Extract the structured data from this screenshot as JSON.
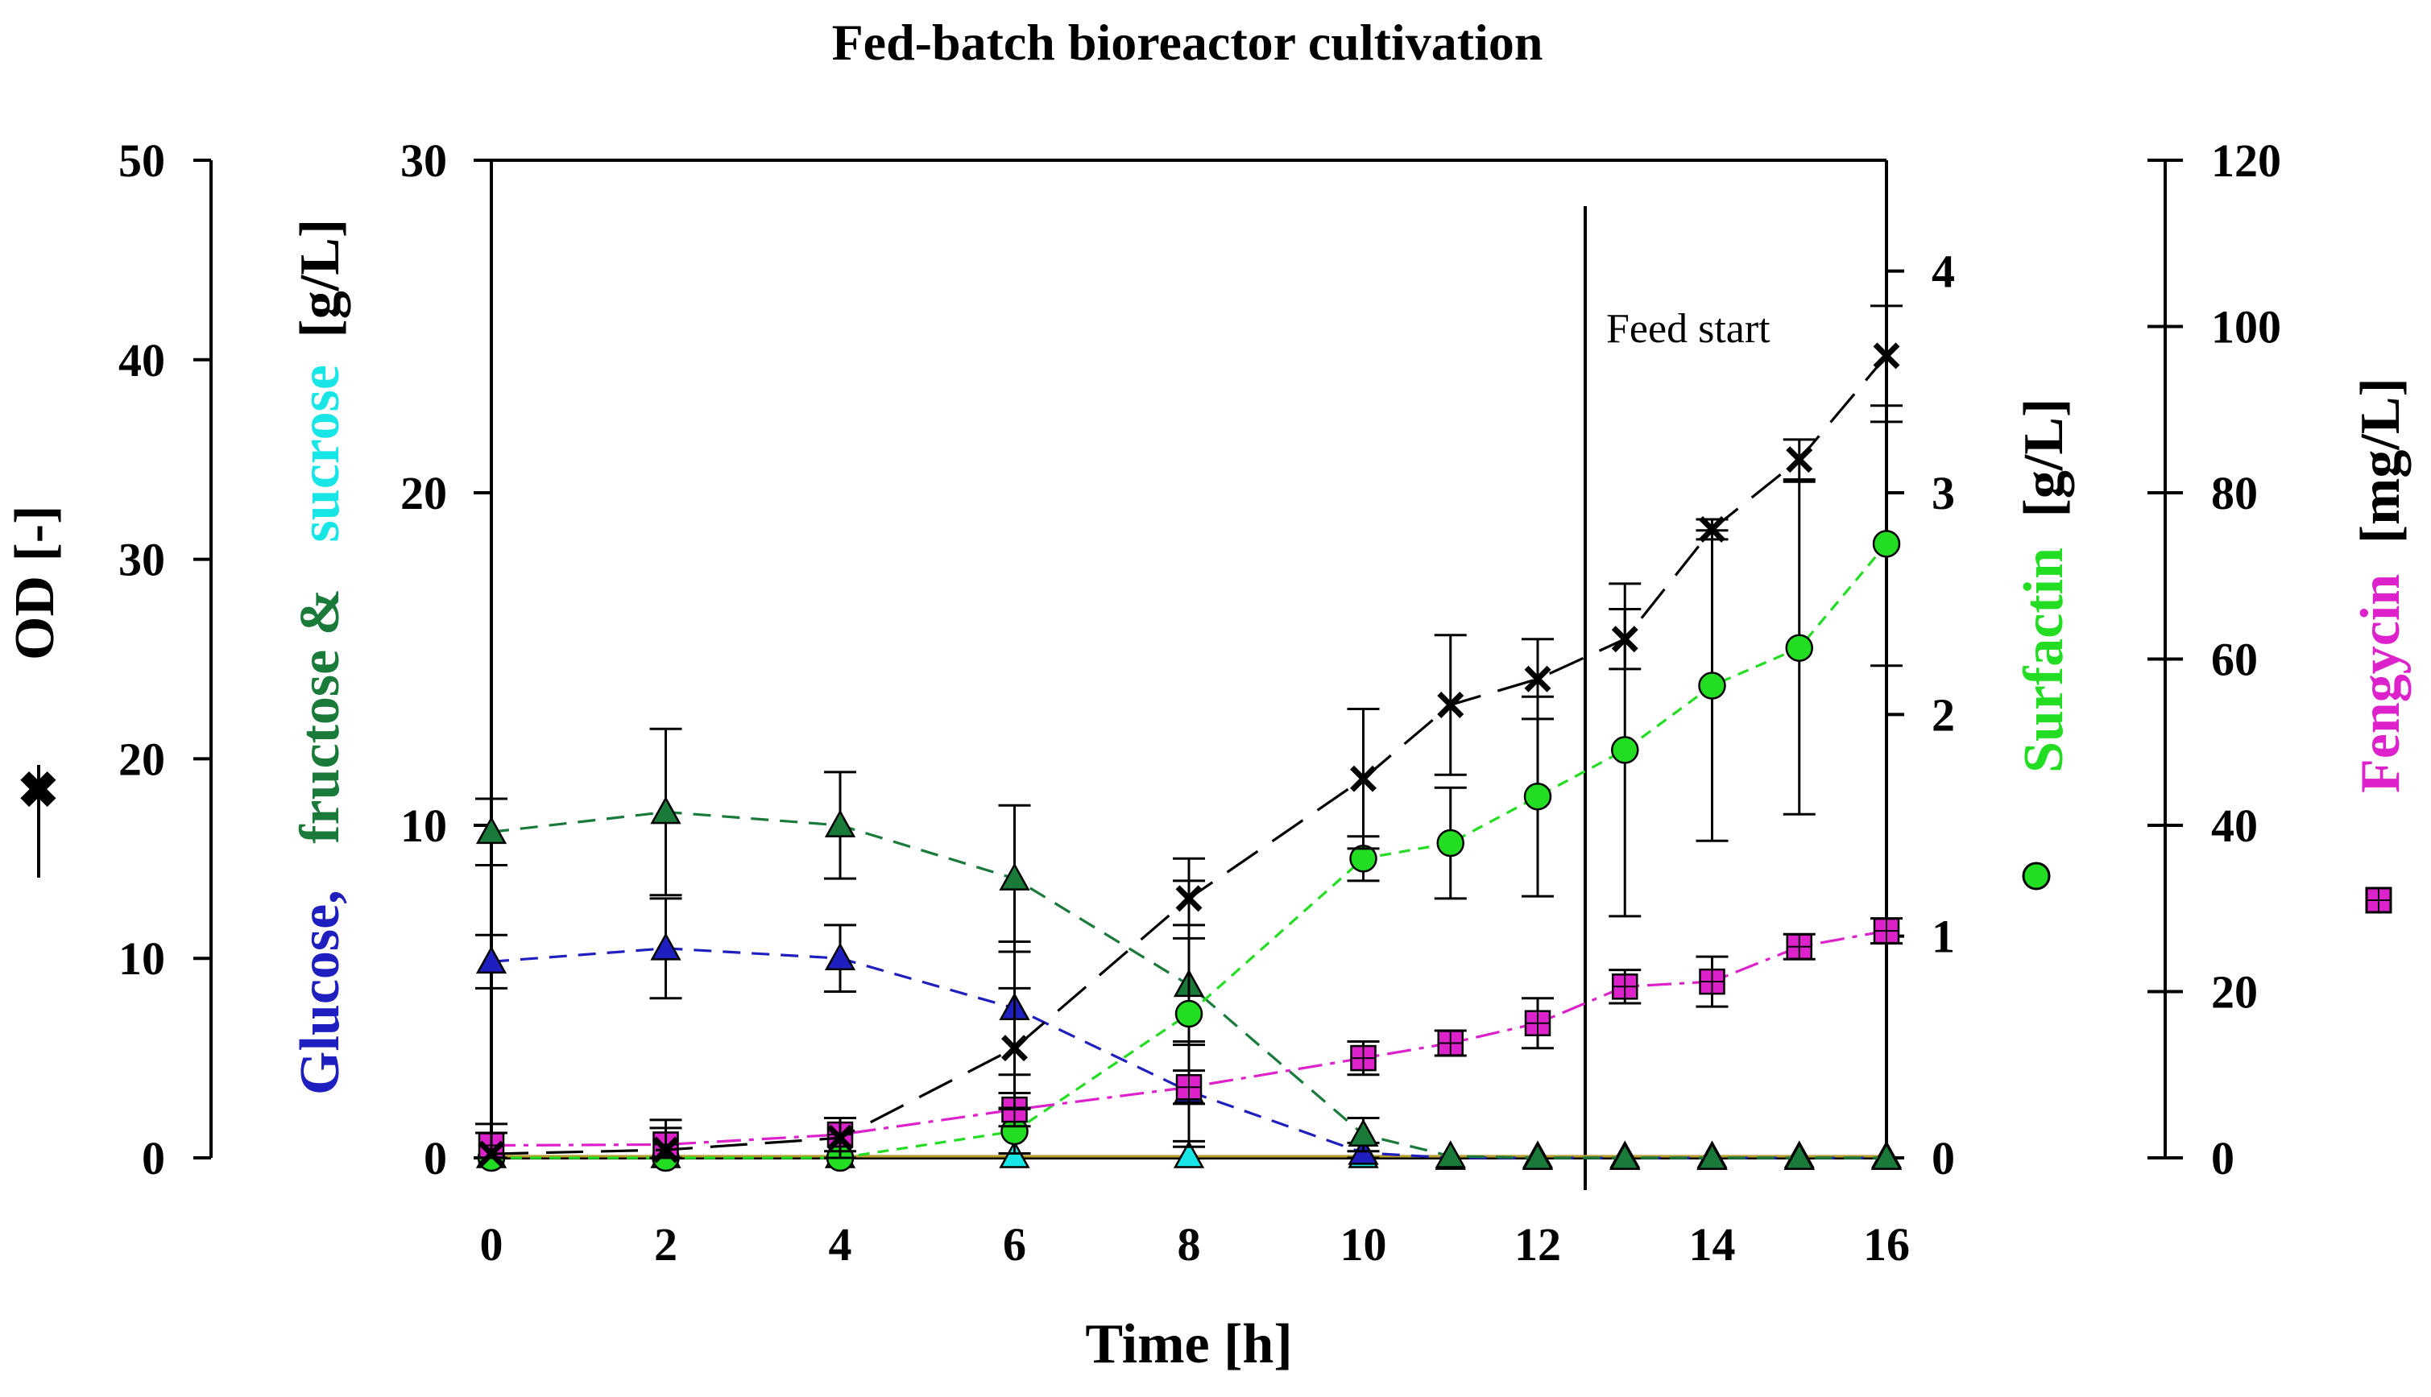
{
  "chart_data": {
    "type": "line",
    "title": "Fed-batch bioreactor cultivation",
    "xlabel": "Time [h]",
    "x_ticks": [
      "0",
      "2",
      "4",
      "6",
      "8",
      "10",
      "12",
      "14",
      "16"
    ],
    "xlim": [
      0,
      16
    ],
    "axes": {
      "od": {
        "label": "OD [-]",
        "ylim": [
          0,
          50
        ],
        "ticks": [
          "0",
          "10",
          "20",
          "30",
          "40",
          "50"
        ]
      },
      "sugar": {
        "label_parts": [
          {
            "text": "Glucose,",
            "color": "#1f1fbf"
          },
          {
            "text": "fructose &",
            "color": "#1a7a3a"
          },
          {
            "text": "sucrose",
            "color": "#18e6e6"
          },
          {
            "text": "[g/L]",
            "color": "#000000"
          }
        ],
        "ylim": [
          0,
          30
        ],
        "ticks": [
          "0",
          "10",
          "20",
          "30"
        ]
      },
      "surfactin": {
        "label": "Surfactin",
        "unit": "[g/L]",
        "color": "#22dd22",
        "ylim": [
          0,
          4.5
        ],
        "ticks": [
          "0",
          "1",
          "2",
          "3",
          "4"
        ]
      },
      "fengycin": {
        "label": "Fengycin",
        "unit": "[mg/L]",
        "color": "#dd22cc",
        "ylim": [
          0,
          120
        ],
        "ticks": [
          "0",
          "20",
          "40",
          "60",
          "80",
          "100",
          "120"
        ]
      }
    },
    "annotations": [
      {
        "text": "Feed start",
        "x": 12.6
      }
    ],
    "series": [
      {
        "name": "OD",
        "axis": "od",
        "marker": "x",
        "color": "#000000",
        "x": [
          0,
          2,
          4,
          6,
          8,
          10,
          11,
          12,
          13,
          14,
          15,
          16
        ],
        "values": [
          0.2,
          0.4,
          1.0,
          5.5,
          13.0,
          19.0,
          22.7,
          24.0,
          26.0,
          31.5,
          35.0,
          40.2
        ],
        "errors": [
          1.5,
          1.5,
          1.0,
          3.0,
          2.0,
          3.5,
          3.5,
          2.0,
          1.5,
          0.5,
          1.0,
          2.5
        ]
      },
      {
        "name": "Glucose",
        "axis": "sugar",
        "marker": "triangle",
        "color": "#1f1fbf",
        "x": [
          0,
          2,
          4,
          6,
          8,
          10,
          11,
          12,
          13,
          14,
          15,
          16
        ],
        "values": [
          5.9,
          6.3,
          6.0,
          4.5,
          2.0,
          0.15,
          0.0,
          0.0,
          0.0,
          0.0,
          0.0,
          0.0
        ],
        "errors": [
          0.8,
          1.5,
          1.0,
          2.0,
          1.5,
          0.3,
          0,
          0,
          0,
          0,
          0,
          0
        ]
      },
      {
        "name": "Fructose",
        "axis": "sugar",
        "marker": "triangle",
        "color": "#1a7a3a",
        "x": [
          0,
          2,
          4,
          6,
          8,
          10,
          11,
          12,
          13,
          14,
          15,
          16
        ],
        "values": [
          9.8,
          10.4,
          10.0,
          8.4,
          5.2,
          0.7,
          0.05,
          0.0,
          0.0,
          0.0,
          0.0,
          0.0
        ],
        "errors": [
          1.0,
          2.5,
          1.6,
          2.2,
          1.8,
          0.5,
          0,
          0,
          0,
          0,
          0,
          0
        ]
      },
      {
        "name": "Sucrose",
        "axis": "sugar",
        "marker": "triangle",
        "color": "#18e6e6",
        "x": [
          0,
          2,
          4,
          6,
          8,
          10,
          11,
          12,
          13,
          14,
          15,
          16
        ],
        "values": [
          0.05,
          0.05,
          0.05,
          0.05,
          0.05,
          0.05,
          0.05,
          0.05,
          0.05,
          0.05,
          0.05,
          0.05
        ],
        "errors": [
          0,
          0,
          0,
          0,
          0,
          0,
          0,
          0,
          0,
          0,
          0,
          0
        ]
      },
      {
        "name": "Surfactin",
        "axis": "surfactin",
        "marker": "circle",
        "color": "#22dd22",
        "x": [
          0,
          2,
          4,
          6,
          8,
          10,
          11,
          12,
          13,
          14,
          15,
          16
        ],
        "values": [
          0.0,
          0.0,
          0.0,
          0.12,
          0.65,
          1.35,
          1.42,
          1.63,
          1.84,
          2.13,
          2.3,
          2.77
        ],
        "errors": [
          0,
          0,
          0,
          0.1,
          0.6,
          0.1,
          0.25,
          0.45,
          0.75,
          0.7,
          0.75,
          0.55
        ]
      },
      {
        "name": "Fengycin",
        "axis": "fengycin",
        "marker": "square",
        "color": "#dd22cc",
        "x": [
          0,
          2,
          4,
          6,
          8,
          10,
          11,
          12,
          13,
          14,
          15,
          16
        ],
        "values": [
          1.5,
          1.6,
          2.8,
          5.8,
          8.5,
          12.0,
          13.8,
          16.2,
          20.6,
          21.2,
          25.4,
          27.3
        ],
        "errors": [
          1.5,
          2.0,
          2.0,
          2.0,
          2.0,
          2.0,
          1.5,
          3.0,
          2.0,
          3.0,
          1.5,
          1.5
        ]
      }
    ]
  }
}
